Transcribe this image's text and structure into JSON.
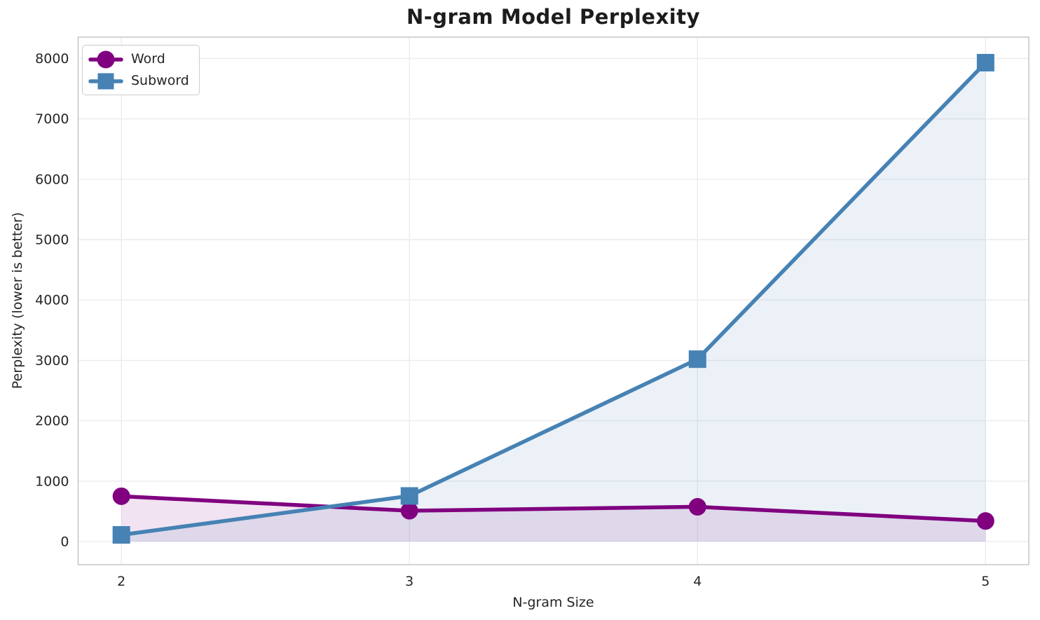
{
  "chart_data": {
    "type": "line",
    "title": "N-gram Model Perplexity",
    "xlabel": "N-gram Size",
    "ylabel": "Perplexity (lower is better)",
    "x": [
      2,
      3,
      4,
      5
    ],
    "series": [
      {
        "name": "Word",
        "values": [
          750,
          510,
          575,
          340
        ],
        "color": "#800080",
        "marker": "circle"
      },
      {
        "name": "Subword",
        "values": [
          110,
          755,
          3020,
          7930
        ],
        "color": "#4682b4",
        "marker": "square"
      }
    ],
    "xticks": [
      2,
      3,
      4,
      5
    ],
    "yticks": [
      0,
      1000,
      2000,
      3000,
      4000,
      5000,
      6000,
      7000,
      8000
    ],
    "xlim": [
      1.85,
      5.15
    ],
    "ylim": [
      -383,
      8353
    ],
    "grid": true,
    "fill_to_zero": true,
    "fill_alpha": 0.11,
    "line_width": 5.5,
    "legend_position": "upper-left"
  },
  "colors": {
    "text": "#262626",
    "title": "#1c1c1c",
    "grid": "#ececf0",
    "spine": "#c9c9ce",
    "background": "#ffffff"
  }
}
